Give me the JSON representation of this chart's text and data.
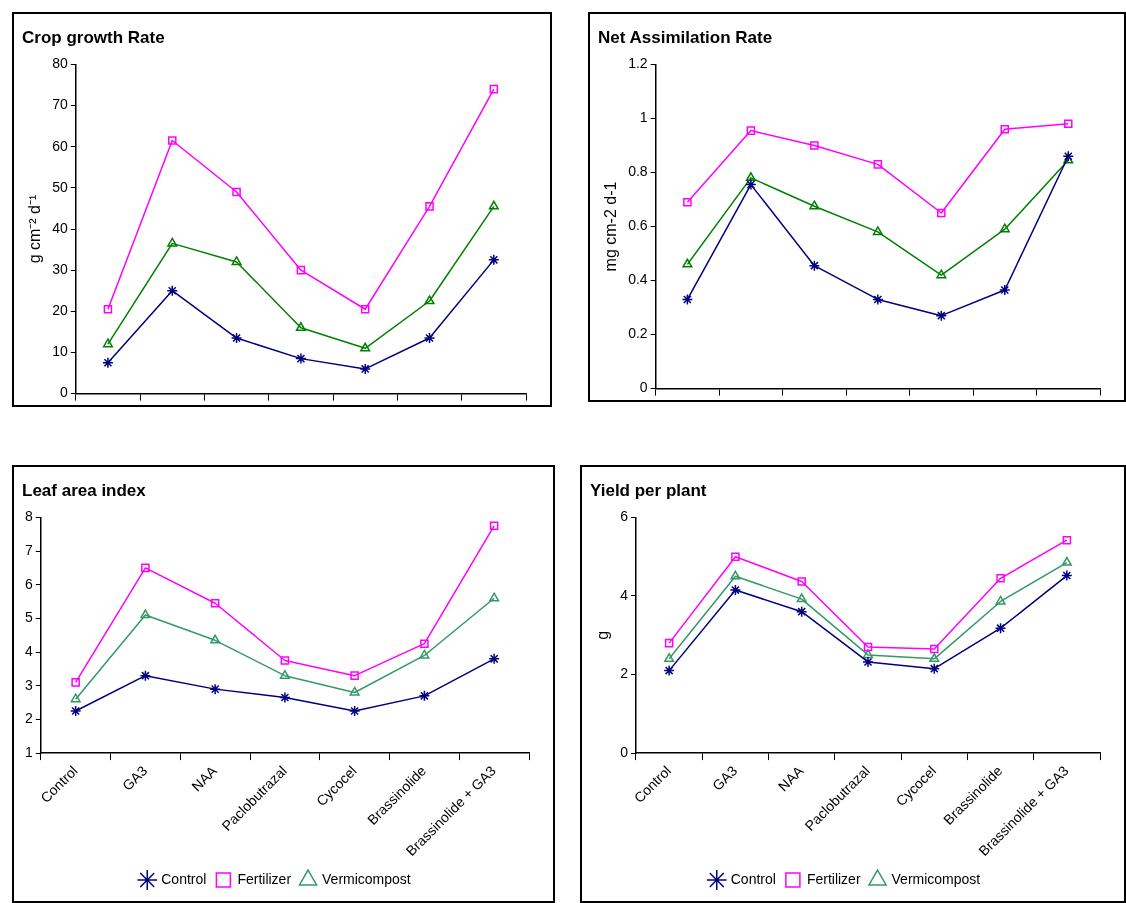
{
  "chart_data": [
    {
      "type": "line",
      "title": "Crop growth Rate",
      "ylabel": "g cm⁻² d⁻¹",
      "categories": [
        null,
        null,
        null,
        null,
        null,
        null,
        null
      ],
      "ylim": [
        0,
        80
      ],
      "yticks": [
        0,
        10,
        20,
        30,
        40,
        50,
        60,
        70,
        80
      ],
      "grid": false,
      "legend": false,
      "tick_labels": "y",
      "series": [
        {
          "color": "#000080",
          "marker": "cross",
          "values": [
            7.5,
            25,
            13.5,
            8.5,
            6,
            13.5,
            32.5
          ]
        },
        {
          "color": "#ff00ff",
          "marker": "square",
          "values": [
            20.5,
            61.5,
            49,
            30,
            20.5,
            45.5,
            74
          ]
        },
        {
          "color": "#008000",
          "marker": "triangle",
          "values": [
            12,
            36.5,
            32,
            16,
            11,
            22.5,
            45.5
          ]
        }
      ]
    },
    {
      "type": "line",
      "title": "Net Assimilation Rate",
      "ylabel": "mg cm-2 d-1",
      "categories": [
        null,
        null,
        null,
        null,
        null,
        null,
        null
      ],
      "ylim": [
        0,
        1.2
      ],
      "yticks": [
        0,
        0.2,
        0.4,
        0.6,
        0.8,
        1,
        1.2
      ],
      "grid": false,
      "legend": false,
      "tick_labels": "y",
      "series": [
        {
          "color": "#000080",
          "marker": "cross",
          "values": [
            0.33,
            0.755,
            0.455,
            0.33,
            0.27,
            0.365,
            0.86
          ]
        },
        {
          "color": "#ff00ff",
          "marker": "square",
          "values": [
            0.69,
            0.955,
            0.9,
            0.83,
            0.65,
            0.96,
            0.98
          ]
        },
        {
          "color": "#008000",
          "marker": "triangle",
          "values": [
            0.46,
            0.78,
            0.675,
            0.58,
            0.42,
            0.59,
            0.845
          ]
        }
      ]
    },
    {
      "type": "line",
      "title": "Leaf area index",
      "categories": [
        "Control",
        "GA3",
        "NAA",
        "Paclobutrazal",
        "Cycocel",
        "Brassinolide",
        "Brassinolide + GA3"
      ],
      "ylim": [
        1,
        8
      ],
      "yticks": [
        1,
        2,
        3,
        4,
        5,
        6,
        7,
        8
      ],
      "grid": false,
      "legend": "bottom",
      "series": [
        {
          "name": "Control",
          "color": "#000080",
          "marker": "cross",
          "values": [
            2.25,
            3.3,
            2.9,
            2.65,
            2.25,
            2.7,
            3.8
          ]
        },
        {
          "name": "Fertilizer",
          "color": "#ff00ff",
          "marker": "square",
          "values": [
            3.1,
            6.5,
            5.45,
            3.75,
            3.3,
            4.25,
            7.75
          ]
        },
        {
          "name": "Vermicompost",
          "color": "#339966",
          "marker": "triangle",
          "values": [
            2.6,
            5.1,
            4.35,
            3.3,
            2.8,
            3.9,
            5.6
          ]
        }
      ]
    },
    {
      "type": "line",
      "title": "Yield per plant",
      "ylabel": "g",
      "categories": [
        "Control",
        "GA3",
        "NAA",
        "Paclobutrazal",
        "Cycocel",
        "Brassinolide",
        "Brassinolide + GA3"
      ],
      "ylim": [
        0,
        6
      ],
      "yticks": [
        0,
        2,
        4,
        6
      ],
      "grid": false,
      "legend": "bottom",
      "series": [
        {
          "name": "Control",
          "color": "#000080",
          "marker": "cross",
          "values": [
            2.1,
            4.15,
            3.6,
            2.32,
            2.15,
            3.18,
            4.52
          ]
        },
        {
          "name": "Fertilizer",
          "color": "#ff00ff",
          "marker": "square",
          "values": [
            2.8,
            5,
            4.37,
            2.7,
            2.65,
            4.45,
            5.42
          ]
        },
        {
          "name": "Vermicompost",
          "color": "#339966",
          "marker": "triangle",
          "values": [
            2.4,
            4.5,
            3.92,
            2.5,
            2.4,
            3.86,
            4.85
          ]
        }
      ]
    }
  ]
}
